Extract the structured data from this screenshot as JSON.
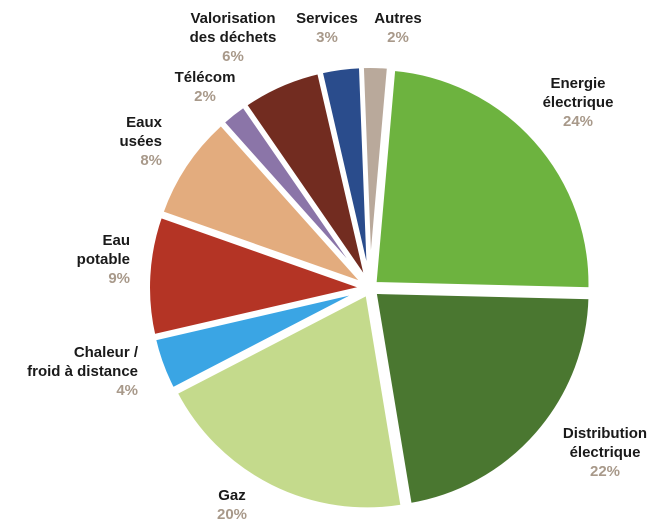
{
  "chart_data": {
    "type": "pie",
    "title": "",
    "slices": [
      {
        "name": [
          "Energie",
          "électrique"
        ],
        "value": 24,
        "label": "24%",
        "color": "#6db33f"
      },
      {
        "name": [
          "Distribution",
          "électrique"
        ],
        "value": 22,
        "label": "22%",
        "color": "#4a7730"
      },
      {
        "name": [
          "Gaz"
        ],
        "value": 20,
        "label": "20%",
        "color": "#c4da8c"
      },
      {
        "name": [
          "Chaleur /",
          "froid à distance"
        ],
        "value": 4,
        "label": "4%",
        "color": "#3aa5e4"
      },
      {
        "name": [
          "Eau",
          "potable"
        ],
        "value": 9,
        "label": "9%",
        "color": "#b43425"
      },
      {
        "name": [
          "Eaux",
          "usées"
        ],
        "value": 8,
        "label": "8%",
        "color": "#e3ac7e"
      },
      {
        "name": [
          "Télécom"
        ],
        "value": 2,
        "label": "2%",
        "color": "#8b75a8"
      },
      {
        "name": [
          "Valorisation",
          "des déchets"
        ],
        "value": 6,
        "label": "6%",
        "color": "#722c20"
      },
      {
        "name": [
          "Services"
        ],
        "value": 3,
        "label": "3%",
        "color": "#2a4c8c"
      },
      {
        "name": [
          "Autres"
        ],
        "value": 2,
        "label": "2%",
        "color": "#b9a99b"
      }
    ]
  }
}
